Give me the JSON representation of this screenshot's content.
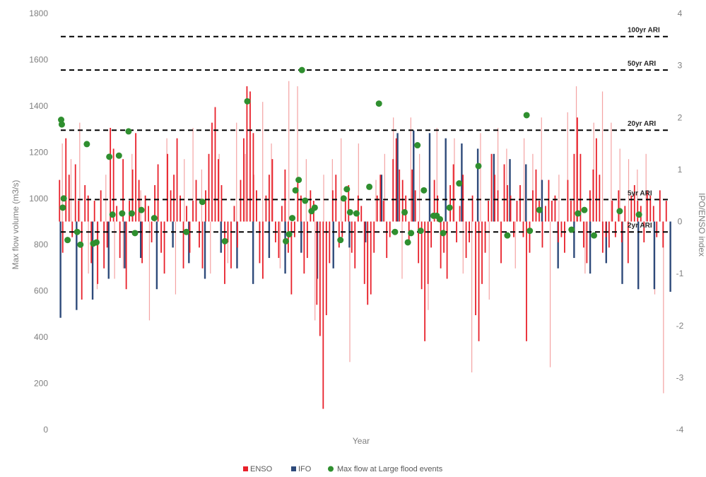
{
  "chart_data": {
    "type": "bar",
    "xlabel": "Year",
    "ylabel_left": "Max flow volume (m3/s)",
    "ylabel_right": "IPO/ENSO index",
    "y_left_ticks": [
      "0",
      "200",
      "400",
      "600",
      "800",
      "1000",
      "1200",
      "1400",
      "1600",
      "1800"
    ],
    "y_right_ticks": [
      "-4",
      "-3",
      "-2",
      "-1",
      "0",
      "1",
      "2",
      "3",
      "4"
    ],
    "ylim_left": [
      0,
      1800
    ],
    "ylim_right": [
      -4,
      4
    ],
    "grid": false,
    "legend_position": "bottom",
    "legend": [
      {
        "label": "ENSO",
        "color": "#e8202a",
        "shape": "square"
      },
      {
        "label": "IFO",
        "color": "#2e4a7a",
        "shape": "square"
      },
      {
        "label": "Max flow at Large flood events",
        "color": "#2f8f2f",
        "shape": "circle"
      }
    ],
    "colors": {
      "enso": "#e8202a",
      "enso_light": "#f4a3a3",
      "ipo": "#2e4a7a",
      "flood": "#2f8f2f",
      "ari_line": "#000000"
    },
    "ari_lines": [
      {
        "label": "100yr ARI",
        "value": 1700
      },
      {
        "label": "50yr ARI",
        "value": 1555
      },
      {
        "label": "20yr ARI",
        "value": 1295
      },
      {
        "label": "5yr ARI",
        "value": 995
      },
      {
        "label": "2yr ARI",
        "value": 855
      }
    ],
    "ipo": {
      "name": "IFO",
      "x": [
        0,
        5,
        10,
        15,
        20,
        25,
        30,
        35,
        40,
        45,
        50,
        55,
        60,
        65,
        70,
        75,
        80,
        85,
        90,
        95,
        100,
        105,
        110,
        115,
        120,
        125,
        130,
        135,
        140,
        145,
        150,
        155,
        160,
        165,
        170,
        175,
        180,
        185,
        190
      ],
      "values": [
        -1.85,
        -1.7,
        -1.5,
        -1.1,
        -0.9,
        -0.7,
        -1.3,
        -0.5,
        -0.8,
        -1.1,
        -0.6,
        -0.9,
        -1.2,
        -0.7,
        -1.0,
        -0.6,
        -1.1,
        -0.9,
        -0.5,
        -0.4,
        0.9,
        1.7,
        1.75,
        1.7,
        1.6,
        1.5,
        1.4,
        1.3,
        1.2,
        1.1,
        0.8,
        -0.9,
        -0.7,
        -1.0,
        -0.8,
        -1.2,
        -1.3,
        -1.3,
        -1.35
      ]
    },
    "enso": {
      "name": "ENSO",
      "x_range": [
        0,
        190
      ],
      "values": [
        0.8,
        -0.6,
        1.6,
        0.9,
        -0.3,
        1.1,
        0.4,
        -1.5,
        0.7,
        0.5,
        -0.8,
        0.4,
        -1.2,
        0.6,
        -0.9,
        -0.5,
        1.8,
        1.4,
        0.3,
        -0.7,
        1.2,
        -1.3,
        0.4,
        1.0,
        1.7,
        0.8,
        -0.8,
        0.5,
        0.3,
        -0.4,
        0.7,
        1.1,
        -0.6,
        -1.0,
        1.3,
        0.6,
        0.9,
        1.6,
        0.5,
        -0.9,
        0.3,
        -0.6,
        0.4,
        0.8,
        -0.5,
        -0.9,
        0.6,
        1.3,
        1.9,
        2.2,
        1.2,
        0.7,
        -1.2,
        -0.4,
        -0.9,
        0.3,
        -0.5,
        0.8,
        1.6,
        2.6,
        2.5,
        1.7,
        0.6,
        -0.8,
        -1.1,
        0.5,
        0.9,
        1.2,
        -0.4,
        -0.7,
        0.3,
        1.0,
        -0.6,
        -1.4,
        -0.3,
        0.8,
        0.5,
        -1.0,
        -0.7,
        0.6,
        0.4,
        -1.6,
        -2.2,
        -3.6,
        -1.8,
        -0.8,
        0.6,
        0.9,
        -0.5,
        -0.3,
        0.4,
        0.7,
        -0.6,
        -0.9,
        0.5,
        0.3,
        -1.2,
        -1.6,
        -1.4,
        -0.6,
        0.5,
        0.9,
        0.4,
        -0.7,
        -0.3,
        1.2,
        1.6,
        1.0,
        0.8,
        0.5,
        -0.4,
        1.0,
        0.6,
        -0.8,
        -1.3,
        -2.3,
        -1.2,
        -0.5,
        0.8,
        0.5,
        -0.9,
        -0.6,
        -1.1,
        0.7,
        1.1,
        -0.4,
        0.3,
        0.9,
        -0.7,
        -0.4,
        0.5,
        -1.8,
        -2.3,
        -1.2,
        -0.6,
        0.4,
        1.3,
        0.9,
        0.6,
        -0.8,
        1.1,
        0.7,
        0.5,
        -0.3,
        0.4,
        0.7,
        -0.3,
        -2.3,
        -0.6,
        0.6,
        1.0,
        0.4,
        -0.5,
        0.3,
        0.8,
        0.4,
        0.5,
        -0.4,
        -0.3,
        -0.6,
        0.8,
        0.4,
        1.3,
        2.0,
        1.3,
        -0.5,
        -0.8,
        0.6,
        1.0,
        1.6,
        0.9,
        -0.6,
        -0.3,
        -0.5,
        0.4,
        -0.3,
        0.6,
        -0.4,
        0.3,
        -0.8,
        0.5,
        0.7,
        0.4,
        0.3,
        -0.4,
        0.6,
        0.5,
        0.3,
        -0.3,
        0.6,
        -0.5,
        0.4
      ],
      "light_values": [
        1.5,
        1.2,
        1.9,
        -1.0,
        -1.3,
        0.9,
        -1.1,
        -0.9,
        1.3,
        0.6,
        -1.9,
        0.7,
        1.6,
        -1.4,
        1.2,
        1.8,
        1.0,
        -1.0,
        1.3,
        -0.8,
        1.9,
        1.3,
        0.9,
        2.3,
        1.5,
        -0.9,
        2.7,
        2.6,
        1.2,
        -1.9,
        0.9,
        1.2,
        1.6,
        -2.7,
        1.5,
        -1.5,
        0.8,
        1.3,
        2.0,
        -1.1,
        2.0,
        1.3,
        -1.7,
        1.8,
        1.4,
        1.6,
        -1.0,
        -2.9,
        1.7,
        -1.5,
        1.8,
        1.4,
        -0.9,
        1.6,
        1.3,
        2.0,
        -2.8,
        0.9,
        2.1,
        2.6,
        -1.0,
        1.9,
        2.5,
        1.9,
        1.4,
        1.2,
        1.0,
        1.3,
        -1.4,
        -3.3
      ]
    },
    "floods": {
      "name": "Max flow at Large flood events",
      "x": [
        1,
        1.2,
        1.5,
        1.8,
        3,
        6,
        7,
        9,
        11,
        12,
        16,
        17,
        19,
        20,
        22,
        23,
        24,
        26,
        30,
        40,
        45,
        52,
        59,
        71,
        72,
        73,
        74,
        75,
        76,
        77,
        79,
        80,
        88,
        89,
        90,
        91,
        93,
        97,
        100,
        105,
        108,
        109,
        110,
        112,
        113,
        114,
        117,
        118,
        119,
        120,
        122,
        125,
        131,
        140,
        146,
        147,
        150,
        160,
        162,
        164,
        167,
        175,
        181
      ],
      "values": [
        1340,
        1320,
        960,
        1000,
        820,
        855,
        800,
        1235,
        805,
        810,
        1180,
        930,
        1185,
        935,
        1290,
        935,
        850,
        950,
        915,
        855,
        985,
        815,
        1420,
        815,
        845,
        915,
        1035,
        1080,
        1555,
        990,
        945,
        960,
        820,
        1000,
        1040,
        940,
        935,
        1050,
        1410,
        855,
        940,
        810,
        850,
        1230,
        860,
        1035,
        925,
        925,
        910,
        850,
        960,
        1065,
        1140,
        840,
        1360,
        860,
        950,
        865,
        935,
        950,
        840,
        945,
        930
      ]
    }
  }
}
